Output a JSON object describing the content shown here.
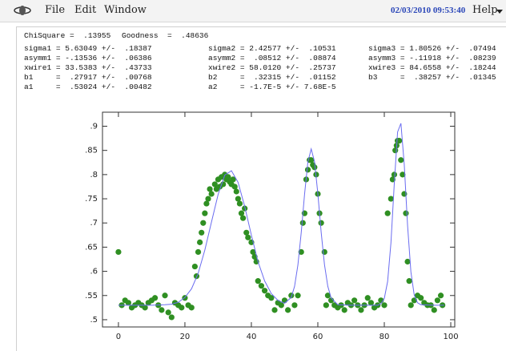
{
  "menu": {
    "items": [
      "File",
      "Edit",
      "Window"
    ],
    "timestamp": "02/03/2010 09:53:40",
    "help": "Help"
  },
  "fit_summary": {
    "chisquare": "ChiSquare =  .13955",
    "goodness": "Goodness  =  .48636"
  },
  "parameters": [
    [
      "sigma1 = 5.63049 +/-  .18387",
      "asymm1 = -.13536 +/-  .06386",
      "xwire1 = 33.5383 +/-  .43733",
      "b1     =  .27917 +/-  .00768",
      "a1     =  .53024 +/-  .00482"
    ],
    [
      "sigma2 = 2.42577 +/-  .10531",
      "asymm2 =  .08512 +/-  .08874",
      "xwire2 = 58.0120 +/-  .25737",
      "b2     =  .32315 +/-  .01152",
      "a2     = -1.7E-5 +/- 7.68E-5"
    ],
    [
      "sigma3 = 1.80526 +/-  .07494",
      "asymm3 = -.11918 +/-  .08239",
      "xwire3 = 84.6558 +/-  .18244",
      "b3     =  .38257 +/-  .01345"
    ]
  ],
  "chart_data": {
    "type": "scatter",
    "xlim": [
      -4.8,
      101.2
    ],
    "ylim": [
      0.485,
      0.929
    ],
    "xticks": [
      0,
      20,
      40,
      60,
      80,
      100
    ],
    "yticks": [
      {
        "value": 0.5,
        "label": ".5"
      },
      {
        "value": 0.55,
        "label": ".55"
      },
      {
        "value": 0.6,
        "label": ".6"
      },
      {
        "value": 0.65,
        "label": ".65"
      },
      {
        "value": 0.7,
        "label": ".7"
      },
      {
        "value": 0.75,
        "label": ".75"
      },
      {
        "value": 0.8,
        "label": ".8"
      },
      {
        "value": 0.85,
        "label": ".85"
      },
      {
        "value": 0.9,
        "label": ".9"
      }
    ],
    "series": [
      {
        "type": "scatter",
        "color": "#2f8f22",
        "x": [
          0,
          1,
          2,
          3,
          4,
          5,
          6,
          7,
          8,
          9,
          10,
          11,
          12,
          13,
          14,
          15,
          16,
          17,
          18,
          19,
          20,
          21,
          22,
          23,
          23.5,
          24,
          24.5,
          25,
          25.5,
          26,
          26.5,
          27,
          27.5,
          28,
          29,
          29.5,
          30,
          30.5,
          31,
          31.5,
          32,
          32.5,
          33,
          33.5,
          34,
          34.5,
          35,
          35.5,
          36,
          36.5,
          37,
          37.5,
          38,
          38.5,
          39,
          40,
          40.5,
          41,
          41.5,
          42,
          43,
          44,
          45,
          46,
          47,
          48,
          49,
          50,
          51,
          52,
          53,
          54,
          55,
          55.5,
          56,
          56.5,
          57,
          57.5,
          58,
          58.5,
          59,
          59.5,
          60,
          60.5,
          61,
          62,
          62.5,
          63,
          64,
          65,
          66,
          67,
          68,
          69,
          70,
          71,
          72,
          73,
          74,
          75,
          76,
          77,
          78,
          79,
          80,
          81,
          82,
          82.5,
          83,
          83.3,
          83.7,
          84,
          84.5,
          85,
          85.5,
          86,
          86.5,
          87,
          87.5,
          88,
          89,
          90,
          91,
          92,
          93,
          94,
          95,
          96,
          97,
          97.5
        ],
        "values": [
          0.64,
          0.53,
          0.54,
          0.535,
          0.525,
          0.53,
          0.535,
          0.53,
          0.525,
          0.535,
          0.54,
          0.545,
          0.53,
          0.52,
          0.55,
          0.515,
          0.505,
          0.535,
          0.53,
          0.525,
          0.545,
          0.53,
          0.525,
          0.61,
          0.59,
          0.64,
          0.66,
          0.68,
          0.7,
          0.72,
          0.74,
          0.75,
          0.77,
          0.76,
          0.78,
          0.77,
          0.79,
          0.775,
          0.795,
          0.78,
          0.8,
          0.79,
          0.795,
          0.785,
          0.78,
          0.79,
          0.775,
          0.765,
          0.75,
          0.74,
          0.72,
          0.71,
          0.73,
          0.68,
          0.67,
          0.66,
          0.64,
          0.63,
          0.62,
          0.58,
          0.57,
          0.56,
          0.55,
          0.545,
          0.52,
          0.535,
          0.53,
          0.54,
          0.52,
          0.55,
          0.53,
          0.55,
          0.64,
          0.7,
          0.72,
          0.79,
          0.81,
          0.83,
          0.83,
          0.82,
          0.815,
          0.8,
          0.76,
          0.72,
          0.7,
          0.64,
          0.53,
          0.55,
          0.54,
          0.53,
          0.525,
          0.53,
          0.52,
          0.535,
          0.53,
          0.54,
          0.53,
          0.52,
          0.53,
          0.545,
          0.535,
          0.525,
          0.53,
          0.54,
          0.53,
          0.72,
          0.75,
          0.79,
          0.8,
          0.85,
          0.86,
          0.87,
          0.87,
          0.83,
          0.8,
          0.76,
          0.72,
          0.62,
          0.58,
          0.53,
          0.54,
          0.55,
          0.545,
          0.535,
          0.53,
          0.53,
          0.52,
          0.54,
          0.55,
          0.53
        ]
      },
      {
        "type": "line",
        "color": "#6a6cf0",
        "x": [
          0,
          10,
          14,
          16,
          18,
          20,
          22,
          24,
          26,
          28,
          30,
          32,
          34,
          36,
          38,
          40,
          42,
          44,
          46,
          48,
          50,
          52,
          53,
          54,
          55,
          56,
          57,
          58,
          59,
          60,
          61,
          62,
          63,
          64,
          66,
          70,
          75,
          78,
          79,
          80,
          81,
          82,
          83,
          84,
          85,
          86,
          87,
          88,
          89,
          90,
          91,
          95,
          98
        ],
        "values": [
          0.53,
          0.53,
          0.531,
          0.532,
          0.536,
          0.546,
          0.564,
          0.596,
          0.644,
          0.702,
          0.759,
          0.799,
          0.808,
          0.784,
          0.734,
          0.675,
          0.62,
          0.58,
          0.554,
          0.54,
          0.534,
          0.546,
          0.569,
          0.613,
          0.68,
          0.759,
          0.826,
          0.853,
          0.827,
          0.761,
          0.681,
          0.614,
          0.569,
          0.545,
          0.531,
          0.53,
          0.53,
          0.53,
          0.533,
          0.544,
          0.579,
          0.659,
          0.781,
          0.888,
          0.906,
          0.821,
          0.695,
          0.599,
          0.551,
          0.535,
          0.531,
          0.53,
          0.53
        ]
      }
    ]
  }
}
